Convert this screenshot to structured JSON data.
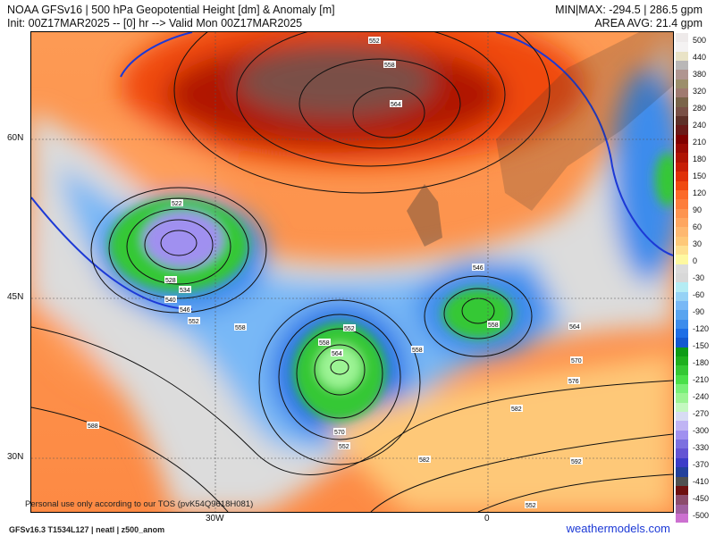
{
  "header": {
    "title": "NOAA GFSv16 | 500 hPa Geopotential Height [dm] & Anomaly [m]",
    "init": "Init: 00Z17MAR2025 -- [0] hr --> Valid Mon 00Z17MAR2025",
    "minmax": "MIN|MAX: -294.5 | 286.5 gpm",
    "area_avg": "AREA AVG: 21.4 gpm"
  },
  "map": {
    "lat_labels": [
      "60N",
      "45N",
      "30N"
    ],
    "lon_labels": [
      "30W",
      "0"
    ],
    "contour_labels": [
      "552",
      "558",
      "564",
      "522",
      "528",
      "534",
      "540",
      "546",
      "552",
      "558",
      "552",
      "558",
      "564",
      "570",
      "552",
      "546",
      "558",
      "558",
      "564",
      "570",
      "576",
      "582",
      "582",
      "588",
      "592",
      "552"
    ]
  },
  "colorbar": {
    "labels": [
      "500",
      "440",
      "380",
      "320",
      "280",
      "240",
      "210",
      "180",
      "150",
      "120",
      "90",
      "60",
      "30",
      "0",
      "-30",
      "-60",
      "-90",
      "-120",
      "-150",
      "-180",
      "-210",
      "-240",
      "-270",
      "-300",
      "-330",
      "-370",
      "-410",
      "-450",
      "-500"
    ],
    "colors": [
      "#eeeaea",
      "#f4f2f2",
      "#e9e3c6",
      "#b9b7b7",
      "#b09590",
      "#9c8e6a",
      "#a07a70",
      "#7a6449",
      "#7a5046",
      "#5e3028",
      "#6a1a18",
      "#800000",
      "#9a0a04",
      "#b01404",
      "#c81e06",
      "#e03008",
      "#f04a10",
      "#fc6a28",
      "#fd7e3c",
      "#fd9450",
      "#fea660",
      "#feb870",
      "#fec878",
      "#fee090",
      "#fef8a0",
      "#dcdcdc",
      "#d8d8d8",
      "#b4ecf4",
      "#96d2f6",
      "#78b8f6",
      "#58a4f0",
      "#3c8cec",
      "#1e6ee6",
      "#1458d0",
      "#0e9c16",
      "#1eb01e",
      "#34c834",
      "#4ae04a",
      "#78f078",
      "#9cf494",
      "#c4f8c0",
      "#d8dcf4",
      "#c0b4f4",
      "#a090f0",
      "#7c70e0",
      "#6454d4",
      "#3c3cc8",
      "#22409c",
      "#505050",
      "#6e1010",
      "#8c4c6c",
      "#a060a0",
      "#cc70d0"
    ],
    "accent_brand": "#1c39d6"
  },
  "footer": {
    "tos": "Personal use only according to our TOS (pvK54Q9618H081)",
    "model_info": "GFSv16.3 T1534L127 | neatl | z500_anom",
    "brand": "weathermodels.com"
  }
}
